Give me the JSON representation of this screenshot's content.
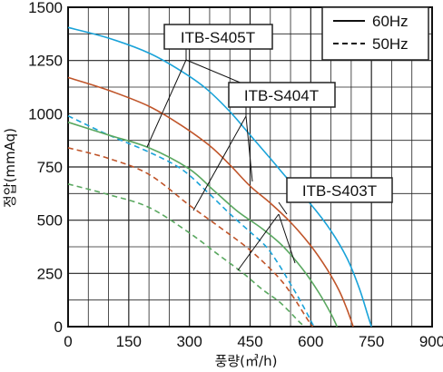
{
  "chart_data": {
    "type": "line",
    "xlabel": "풍량(㎥/h)",
    "ylabel": "정압(mmAq)",
    "xlim": [
      0,
      900
    ],
    "ylim": [
      0,
      1500
    ],
    "x_ticks": [
      "0",
      "150",
      "300",
      "450",
      "600",
      "750",
      "900"
    ],
    "y_ticks": [
      "0",
      "250",
      "500",
      "750",
      "1000",
      "1250",
      "1500"
    ],
    "grid": true,
    "legend_position": "top-right",
    "legend": [
      {
        "label": "60Hz",
        "style": "solid"
      },
      {
        "label": "50Hz",
        "style": "dashed"
      }
    ],
    "model_labels": [
      "ITB-S405T",
      "ITB-S404T",
      "ITB-S403T"
    ],
    "series": [
      {
        "name": "ITB-S405T",
        "frequency": "60Hz",
        "style": "solid",
        "color": "#1aa3d9",
        "x": [
          0,
          100,
          200,
          280,
          340,
          400,
          450,
          500,
          540,
          600,
          650,
          690,
          720,
          740,
          750
        ],
        "y": [
          1405,
          1355,
          1285,
          1200,
          1120,
          1010,
          900,
          790,
          700,
          575,
          450,
          320,
          180,
          60,
          0
        ]
      },
      {
        "name": "ITB-S405T",
        "frequency": "50Hz",
        "style": "dashed",
        "color": "#1aa3d9",
        "x": [
          0,
          100,
          200,
          280,
          340,
          400,
          450,
          490,
          520,
          550,
          570,
          590,
          605,
          610
        ],
        "y": [
          990,
          900,
          820,
          740,
          640,
          530,
          445,
          375,
          295,
          200,
          135,
          65,
          10,
          0
        ]
      },
      {
        "name": "ITB-S404T",
        "frequency": "60Hz",
        "style": "solid",
        "color": "#c0552a",
        "x": [
          0,
          100,
          200,
          280,
          350,
          400,
          450,
          500,
          550,
          600,
          640,
          670,
          690,
          705
        ],
        "y": [
          1170,
          1110,
          1035,
          945,
          850,
          760,
          660,
          580,
          490,
          380,
          270,
          170,
          80,
          0
        ]
      },
      {
        "name": "ITB-S404T",
        "frequency": "50Hz",
        "style": "dashed",
        "color": "#c0552a",
        "x": [
          0,
          100,
          200,
          300,
          380,
          440,
          490,
          530,
          560,
          580,
          595,
          605
        ],
        "y": [
          840,
          790,
          715,
          570,
          460,
          375,
          290,
          210,
          130,
          70,
          25,
          0
        ]
      },
      {
        "name": "ITB-S403T",
        "frequency": "60Hz",
        "style": "solid",
        "color": "#5aa860",
        "x": [
          0,
          100,
          200,
          300,
          360,
          420,
          480,
          530,
          580,
          620,
          650,
          665
        ],
        "y": [
          960,
          900,
          840,
          740,
          640,
          540,
          460,
          380,
          270,
          160,
          60,
          0
        ]
      },
      {
        "name": "ITB-S403T",
        "frequency": "50Hz",
        "style": "dashed",
        "color": "#5aa860",
        "x": [
          0,
          100,
          200,
          300,
          370,
          430,
          480,
          520,
          550,
          570,
          580,
          585
        ],
        "y": [
          670,
          620,
          560,
          440,
          340,
          255,
          175,
          120,
          65,
          25,
          8,
          0
        ]
      }
    ]
  }
}
